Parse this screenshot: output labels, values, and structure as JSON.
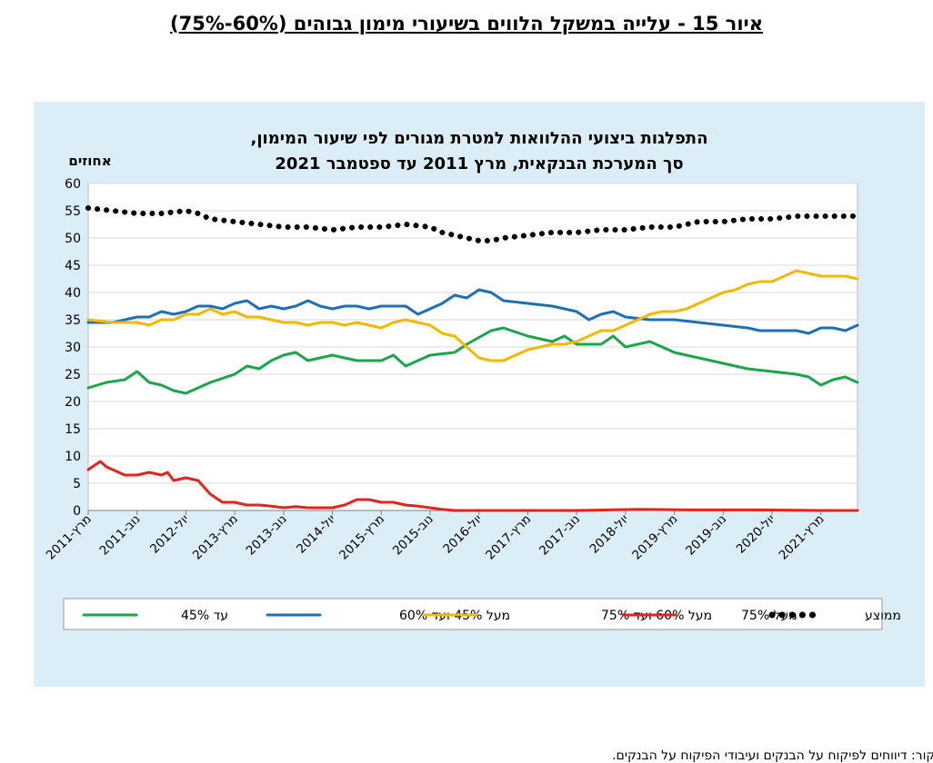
{
  "figure_title": "איור 15 - עלייה במשקל הלווים בשיעורי מימון גבוהים (60%-75%)",
  "source": "המקור: דיווחים לפיקוח על הבנקים ועיבודי הפיקוח על הבנקים.",
  "chart_data": {
    "type": "line",
    "title_line1": "התפלגות ביצועי ההלוואות למטרת מגורים לפי שיעור המימון,",
    "title_line2": "סך המערכת הבנקאית, מרץ 2011 עד ספטמבר 2021",
    "ylabel": "אחוזים",
    "ylim": [
      0,
      60
    ],
    "yticks": [
      0,
      5,
      10,
      15,
      20,
      25,
      30,
      35,
      40,
      45,
      50,
      55,
      60
    ],
    "xlim": [
      0,
      126
    ],
    "x_tick_positions": [
      0,
      8,
      16,
      24,
      32,
      40,
      48,
      56,
      64,
      72,
      80,
      88,
      96,
      104,
      112,
      120
    ],
    "x_tick_labels": [
      "מרץ-2011",
      "נוב-2011",
      "יול-2012",
      "מרץ-2013",
      "נוב-2013",
      "יול-2014",
      "מרץ-2015",
      "נוב-2015",
      "יול-2016",
      "מרץ-2017",
      "נוב-2017",
      "יול-2018",
      "מרץ-2019",
      "נוב-2019",
      "יול-2020",
      "מרץ-2021"
    ],
    "grid": true,
    "legend_position": "bottom",
    "series": [
      {
        "name": "עד 45%",
        "color": "#1aa64b",
        "style": "solid",
        "points": [
          [
            0,
            22.5
          ],
          [
            3,
            23.5
          ],
          [
            6,
            24
          ],
          [
            8,
            25.5
          ],
          [
            10,
            23.5
          ],
          [
            12,
            23
          ],
          [
            14,
            22
          ],
          [
            16,
            21.5
          ],
          [
            18,
            22.5
          ],
          [
            20,
            23.5
          ],
          [
            24,
            25
          ],
          [
            26,
            26.5
          ],
          [
            28,
            26
          ],
          [
            30,
            27.5
          ],
          [
            32,
            28.5
          ],
          [
            34,
            29
          ],
          [
            36,
            27.5
          ],
          [
            40,
            28.5
          ],
          [
            44,
            27.5
          ],
          [
            48,
            27.5
          ],
          [
            50,
            28.5
          ],
          [
            52,
            26.5
          ],
          [
            56,
            28.5
          ],
          [
            60,
            29
          ],
          [
            62,
            30.5
          ],
          [
            66,
            33
          ],
          [
            68,
            33.5
          ],
          [
            72,
            32
          ],
          [
            76,
            31
          ],
          [
            78,
            32
          ],
          [
            80,
            30.5
          ],
          [
            84,
            30.5
          ],
          [
            86,
            32
          ],
          [
            88,
            30
          ],
          [
            92,
            31
          ],
          [
            96,
            29
          ],
          [
            100,
            28
          ],
          [
            104,
            27
          ],
          [
            108,
            26
          ],
          [
            112,
            25.5
          ],
          [
            116,
            25
          ],
          [
            118,
            24.5
          ],
          [
            120,
            23
          ],
          [
            122,
            24
          ],
          [
            124,
            24.5
          ],
          [
            126,
            23.5
          ]
        ]
      },
      {
        "name": "מעל 45% ועד 60%",
        "color": "#1f6fb8",
        "style": "solid",
        "points": [
          [
            0,
            34.5
          ],
          [
            2,
            34.5
          ],
          [
            4,
            34.5
          ],
          [
            6,
            35
          ],
          [
            8,
            35.5
          ],
          [
            10,
            35.5
          ],
          [
            12,
            36.5
          ],
          [
            14,
            36
          ],
          [
            16,
            36.5
          ],
          [
            18,
            37.5
          ],
          [
            20,
            37.5
          ],
          [
            22,
            37
          ],
          [
            24,
            38
          ],
          [
            26,
            38.5
          ],
          [
            28,
            37
          ],
          [
            30,
            37.5
          ],
          [
            32,
            37
          ],
          [
            34,
            37.5
          ],
          [
            36,
            38.5
          ],
          [
            38,
            37.5
          ],
          [
            40,
            37
          ],
          [
            42,
            37.5
          ],
          [
            44,
            37.5
          ],
          [
            46,
            37
          ],
          [
            48,
            37.5
          ],
          [
            50,
            37.5
          ],
          [
            52,
            37.5
          ],
          [
            54,
            36
          ],
          [
            56,
            37
          ],
          [
            58,
            38
          ],
          [
            60,
            39.5
          ],
          [
            62,
            39
          ],
          [
            64,
            40.5
          ],
          [
            66,
            40
          ],
          [
            68,
            38.5
          ],
          [
            72,
            38
          ],
          [
            76,
            37.5
          ],
          [
            78,
            37
          ],
          [
            80,
            36.5
          ],
          [
            82,
            35
          ],
          [
            84,
            36
          ],
          [
            86,
            36.5
          ],
          [
            88,
            35.5
          ],
          [
            92,
            35
          ],
          [
            96,
            35
          ],
          [
            100,
            34.5
          ],
          [
            104,
            34
          ],
          [
            108,
            33.5
          ],
          [
            110,
            33
          ],
          [
            112,
            33
          ],
          [
            116,
            33
          ],
          [
            118,
            32.5
          ],
          [
            120,
            33.5
          ],
          [
            122,
            33.5
          ],
          [
            124,
            33
          ],
          [
            126,
            34
          ]
        ]
      },
      {
        "name": "מעל 60% ועד 75%",
        "color": "#f5b800",
        "style": "solid",
        "points": [
          [
            0,
            35
          ],
          [
            4,
            34.5
          ],
          [
            8,
            34.5
          ],
          [
            10,
            34
          ],
          [
            12,
            35
          ],
          [
            14,
            35
          ],
          [
            16,
            36
          ],
          [
            18,
            36
          ],
          [
            20,
            37
          ],
          [
            22,
            36
          ],
          [
            24,
            36.5
          ],
          [
            26,
            35.5
          ],
          [
            28,
            35.5
          ],
          [
            30,
            35
          ],
          [
            32,
            34.5
          ],
          [
            34,
            34.5
          ],
          [
            36,
            34
          ],
          [
            38,
            34.5
          ],
          [
            40,
            34.5
          ],
          [
            42,
            34
          ],
          [
            44,
            34.5
          ],
          [
            46,
            34
          ],
          [
            48,
            33.5
          ],
          [
            50,
            34.5
          ],
          [
            52,
            35
          ],
          [
            54,
            34.5
          ],
          [
            56,
            34
          ],
          [
            58,
            32.5
          ],
          [
            60,
            32
          ],
          [
            62,
            30
          ],
          [
            64,
            28
          ],
          [
            66,
            27.5
          ],
          [
            68,
            27.5
          ],
          [
            70,
            28.5
          ],
          [
            72,
            29.5
          ],
          [
            74,
            30
          ],
          [
            76,
            30.5
          ],
          [
            78,
            30.5
          ],
          [
            80,
            31
          ],
          [
            82,
            32
          ],
          [
            84,
            33
          ],
          [
            86,
            33
          ],
          [
            88,
            34
          ],
          [
            90,
            35
          ],
          [
            92,
            36
          ],
          [
            94,
            36.5
          ],
          [
            96,
            36.5
          ],
          [
            98,
            37
          ],
          [
            100,
            38
          ],
          [
            102,
            39
          ],
          [
            104,
            40
          ],
          [
            106,
            40.5
          ],
          [
            108,
            41.5
          ],
          [
            110,
            42
          ],
          [
            112,
            42
          ],
          [
            114,
            43
          ],
          [
            116,
            44
          ],
          [
            118,
            43.5
          ],
          [
            120,
            43
          ],
          [
            122,
            43
          ],
          [
            124,
            43
          ],
          [
            126,
            42.5
          ]
        ]
      },
      {
        "name": "מעל 75%",
        "color": "#e8221b",
        "style": "solid",
        "points": [
          [
            0,
            7.5
          ],
          [
            2,
            9
          ],
          [
            3,
            8
          ],
          [
            4,
            7.5
          ],
          [
            6,
            6.5
          ],
          [
            8,
            6.5
          ],
          [
            10,
            7
          ],
          [
            12,
            6.5
          ],
          [
            13,
            7
          ],
          [
            14,
            5.5
          ],
          [
            16,
            6
          ],
          [
            18,
            5.5
          ],
          [
            20,
            3
          ],
          [
            22,
            1.5
          ],
          [
            24,
            1.5
          ],
          [
            26,
            1
          ],
          [
            28,
            1
          ],
          [
            30,
            0.8
          ],
          [
            32,
            0.5
          ],
          [
            34,
            0.7
          ],
          [
            36,
            0.5
          ],
          [
            40,
            0.5
          ],
          [
            42,
            1
          ],
          [
            44,
            2
          ],
          [
            46,
            2
          ],
          [
            48,
            1.5
          ],
          [
            50,
            1.5
          ],
          [
            52,
            1
          ],
          [
            54,
            0.8
          ],
          [
            56,
            0.5
          ],
          [
            58,
            0.2
          ],
          [
            60,
            0
          ],
          [
            70,
            0
          ],
          [
            80,
            0
          ],
          [
            90,
            0.2
          ],
          [
            100,
            0.1
          ],
          [
            110,
            0.1
          ],
          [
            120,
            0
          ],
          [
            126,
            0
          ]
        ]
      },
      {
        "name": "ממוצע",
        "color": "#000000",
        "style": "dotted",
        "points": [
          [
            0,
            55.5
          ],
          [
            4,
            55
          ],
          [
            8,
            54.5
          ],
          [
            12,
            54.5
          ],
          [
            16,
            55
          ],
          [
            18,
            54.5
          ],
          [
            20,
            53.5
          ],
          [
            24,
            53
          ],
          [
            28,
            52.5
          ],
          [
            32,
            52
          ],
          [
            36,
            52
          ],
          [
            40,
            51.5
          ],
          [
            44,
            52
          ],
          [
            48,
            52
          ],
          [
            52,
            52.5
          ],
          [
            56,
            52
          ],
          [
            58,
            51
          ],
          [
            60,
            50.5
          ],
          [
            62,
            50
          ],
          [
            64,
            49.5
          ],
          [
            66,
            49.5
          ],
          [
            68,
            50
          ],
          [
            72,
            50.5
          ],
          [
            76,
            51
          ],
          [
            80,
            51
          ],
          [
            84,
            51.5
          ],
          [
            88,
            51.5
          ],
          [
            92,
            52
          ],
          [
            96,
            52
          ],
          [
            100,
            53
          ],
          [
            104,
            53
          ],
          [
            108,
            53.5
          ],
          [
            112,
            53.5
          ],
          [
            116,
            54
          ],
          [
            120,
            54
          ],
          [
            124,
            54
          ],
          [
            126,
            54
          ]
        ]
      }
    ]
  }
}
